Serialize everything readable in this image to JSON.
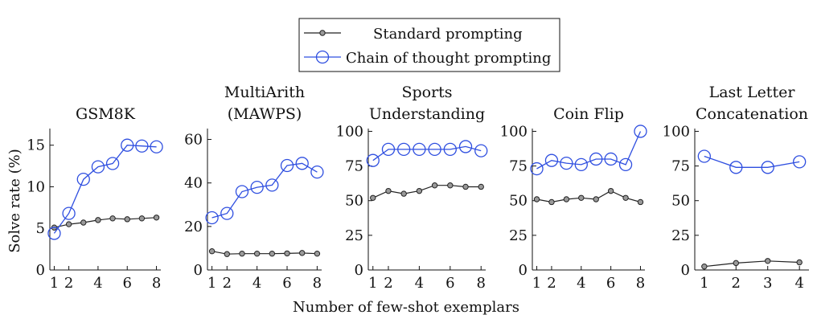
{
  "legend": {
    "standard_label": "Standard prompting",
    "cot_label": "Chain of thought prompting"
  },
  "ylabel": "Solve rate (%)",
  "xlabel": "Number of few-shot exemplars",
  "colors": {
    "standard": "#222222",
    "cot": "#2f4fe0"
  },
  "chart_data": [
    {
      "type": "line",
      "title_lines": [
        "GSM8K"
      ],
      "ylim": [
        0,
        17
      ],
      "yticks": [
        0,
        5,
        10,
        15
      ],
      "xlim": [
        0.7,
        8.3
      ],
      "xticks": [
        1,
        2,
        4,
        6,
        8
      ],
      "grid": false,
      "series": [
        {
          "name": "Standard prompting",
          "x": [
            1,
            2,
            3,
            4,
            5,
            6,
            7,
            8
          ],
          "values": [
            5.1,
            5.5,
            5.7,
            6.0,
            6.2,
            6.1,
            6.2,
            6.3
          ]
        },
        {
          "name": "Chain of thought prompting",
          "x": [
            1,
            2,
            3,
            4,
            5,
            6,
            7,
            8
          ],
          "values": [
            4.4,
            6.8,
            10.9,
            12.4,
            12.8,
            15.0,
            14.9,
            14.8
          ]
        }
      ]
    },
    {
      "type": "line",
      "title_lines": [
        "MultiArith",
        "(MAWPS)"
      ],
      "ylim": [
        0,
        65
      ],
      "yticks": [
        0,
        20,
        40,
        60
      ],
      "xlim": [
        0.7,
        8.3
      ],
      "xticks": [
        1,
        2,
        4,
        6,
        8
      ],
      "grid": false,
      "series": [
        {
          "name": "Standard prompting",
          "x": [
            1,
            2,
            3,
            4,
            5,
            6,
            7,
            8
          ],
          "values": [
            8.6,
            7.3,
            7.5,
            7.5,
            7.5,
            7.6,
            7.8,
            7.5
          ]
        },
        {
          "name": "Chain of thought prompting",
          "x": [
            1,
            2,
            3,
            4,
            5,
            6,
            7,
            8
          ],
          "values": [
            24,
            26,
            36,
            38,
            39,
            48,
            49,
            45
          ]
        }
      ]
    },
    {
      "type": "line",
      "title_lines": [
        "Sports",
        "Understanding"
      ],
      "ylim": [
        0,
        102
      ],
      "yticks": [
        0,
        25,
        50,
        75,
        100
      ],
      "xlim": [
        0.7,
        8.3
      ],
      "xticks": [
        1,
        2,
        4,
        6,
        8
      ],
      "grid": false,
      "series": [
        {
          "name": "Standard prompting",
          "x": [
            1,
            2,
            3,
            4,
            5,
            6,
            7,
            8
          ],
          "values": [
            52,
            57,
            55,
            57,
            61,
            61,
            60,
            60
          ]
        },
        {
          "name": "Chain of thought prompting",
          "x": [
            1,
            2,
            3,
            4,
            5,
            6,
            7,
            8
          ],
          "values": [
            79,
            87,
            87,
            87,
            87,
            87,
            89,
            86
          ]
        }
      ]
    },
    {
      "type": "line",
      "title_lines": [
        "Coin Flip"
      ],
      "ylim": [
        0,
        102
      ],
      "yticks": [
        0,
        25,
        50,
        75,
        100
      ],
      "xlim": [
        0.7,
        8.3
      ],
      "xticks": [
        1,
        2,
        4,
        6,
        8
      ],
      "grid": false,
      "series": [
        {
          "name": "Standard prompting",
          "x": [
            1,
            2,
            3,
            4,
            5,
            6,
            7,
            8
          ],
          "values": [
            51,
            49,
            51,
            52,
            51,
            57,
            52,
            49
          ]
        },
        {
          "name": "Chain of thought prompting",
          "x": [
            1,
            2,
            3,
            4,
            5,
            6,
            7,
            8
          ],
          "values": [
            73,
            79,
            77,
            76,
            80,
            80,
            76,
            100
          ]
        }
      ]
    },
    {
      "type": "line",
      "title_lines": [
        "Last Letter",
        "Concatenation"
      ],
      "ylim": [
        0,
        102
      ],
      "yticks": [
        0,
        25,
        50,
        75,
        100
      ],
      "xlim": [
        0.7,
        4.3
      ],
      "xticks": [
        1,
        2,
        3,
        4
      ],
      "grid": false,
      "series": [
        {
          "name": "Standard prompting",
          "x": [
            1,
            2,
            3,
            4
          ],
          "values": [
            2.5,
            5,
            6.5,
            5.5
          ]
        },
        {
          "name": "Chain of thought prompting",
          "x": [
            1,
            2,
            3,
            4
          ],
          "values": [
            82,
            74,
            74,
            78
          ]
        }
      ]
    }
  ]
}
